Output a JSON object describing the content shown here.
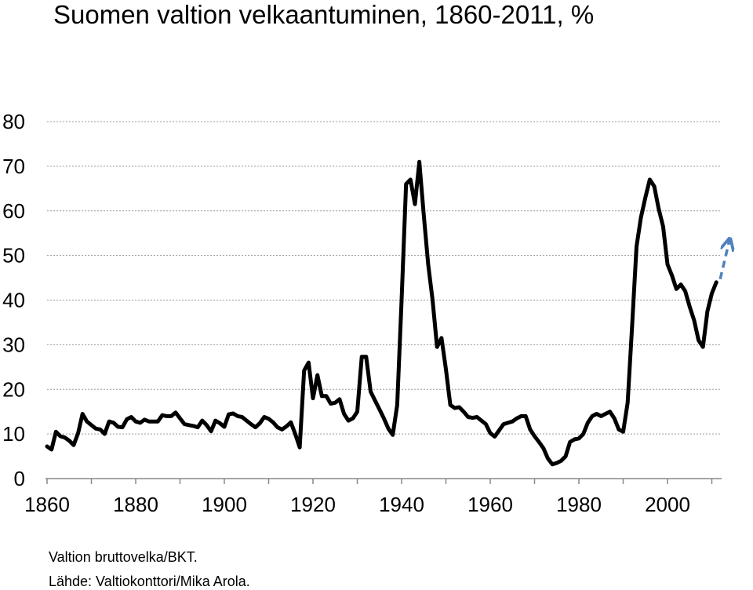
{
  "title": "Suomen valtion velkaantuminen, 1860-2011, %",
  "notes": {
    "line1": "Valtion bruttovelka/BKT.",
    "line2": "Lähde: Valtiokonttori/Mika Arola."
  },
  "chart_data": {
    "type": "line",
    "title": "Suomen valtion velkaantuminen, 1860-2011, %",
    "xlabel": "",
    "ylabel": "",
    "xlim": [
      1860,
      2013
    ],
    "ylim": [
      0,
      80
    ],
    "yticks": [
      0,
      10,
      20,
      30,
      40,
      50,
      60,
      70,
      80
    ],
    "xticks": [
      1860,
      1880,
      1900,
      1920,
      1940,
      1960,
      1980,
      2000
    ],
    "grid": true,
    "colors": {
      "line": "#000000",
      "projection": "#4f81bd",
      "grid": "#9a9a9a"
    },
    "series": [
      {
        "x": [
          1860,
          1861,
          1862,
          1863,
          1864,
          1865,
          1866,
          1867,
          1868,
          1869,
          1870,
          1871,
          1872,
          1873,
          1874,
          1875,
          1876,
          1877,
          1878,
          1879,
          1880,
          1881,
          1882,
          1883,
          1884,
          1885,
          1886,
          1887,
          1888,
          1889,
          1890,
          1891,
          1892,
          1893,
          1894,
          1895,
          1896,
          1897,
          1898,
          1899,
          1900,
          1901,
          1902,
          1903,
          1904,
          1905,
          1906,
          1907,
          1908,
          1909,
          1910,
          1911,
          1912,
          1913,
          1914,
          1915,
          1916,
          1917,
          1918,
          1919,
          1920,
          1921,
          1922,
          1923,
          1924,
          1925,
          1926,
          1927,
          1928,
          1929,
          1930,
          1931,
          1932,
          1933,
          1934,
          1935,
          1936,
          1937,
          1938,
          1939,
          1940,
          1941,
          1942,
          1943,
          1944,
          1945,
          1946,
          1947,
          1948,
          1949,
          1950,
          1951,
          1952,
          1953,
          1954,
          1955,
          1956,
          1957,
          1958,
          1959,
          1960,
          1961,
          1962,
          1963,
          1964,
          1965,
          1966,
          1967,
          1968,
          1969,
          1970,
          1971,
          1972,
          1973,
          1974,
          1975,
          1976,
          1977,
          1978,
          1979,
          1980,
          1981,
          1982,
          1983,
          1984,
          1985,
          1986,
          1987,
          1988,
          1989,
          1990,
          1991,
          1992,
          1993,
          1994,
          1995,
          1996,
          1997,
          1998,
          1999,
          2000,
          2001,
          2002,
          2003,
          2004,
          2005,
          2006,
          2007,
          2008,
          2009,
          2010,
          2011
        ],
        "values": [
          7.2,
          6.5,
          10.5,
          9.5,
          9.2,
          8.5,
          7.5,
          10.2,
          14.5,
          12.8,
          12.0,
          11.2,
          11.0,
          10.0,
          12.8,
          12.5,
          11.6,
          11.5,
          13.3,
          13.8,
          12.8,
          12.5,
          13.2,
          12.8,
          12.8,
          12.8,
          14.2,
          14.0,
          14.0,
          14.8,
          13.5,
          12.2,
          12.0,
          11.8,
          11.5,
          13.0,
          12.0,
          10.6,
          13.0,
          12.4,
          11.6,
          14.4,
          14.6,
          14.0,
          13.8,
          13.0,
          12.2,
          11.5,
          12.4,
          13.8,
          13.4,
          12.6,
          11.5,
          11.0,
          11.7,
          12.6,
          10.0,
          7.0,
          24.2,
          26.0,
          18.0,
          23.2,
          18.5,
          18.5,
          16.8,
          17.0,
          17.8,
          14.5,
          13.0,
          13.5,
          15.0,
          27.3,
          27.3,
          19.5,
          17.5,
          15.5,
          13.5,
          11.2,
          9.8,
          16.5,
          40.0,
          66.0,
          67.0,
          61.5,
          71.0,
          59.0,
          48.0,
          40.0,
          29.5,
          31.5,
          24.5,
          16.5,
          15.8,
          16.0,
          15.0,
          13.8,
          13.6,
          13.8,
          13.0,
          12.2,
          10.2,
          9.4,
          10.8,
          12.2,
          12.5,
          12.8,
          13.5,
          14.0,
          14.0,
          11.0,
          9.5,
          8.2,
          6.8,
          4.5,
          3.2,
          3.5,
          4.0,
          5.0,
          8.2,
          8.8,
          9.0,
          10.0,
          12.5,
          14.0,
          14.5,
          14.0,
          14.5,
          15.0,
          13.5,
          11.0,
          10.5,
          17.0,
          34.0,
          52.0,
          58.5,
          63.0,
          67.0,
          65.5,
          60.5,
          56.5,
          48.0,
          45.5,
          42.5,
          43.5,
          42.0,
          38.5,
          35.5,
          31.0,
          29.5,
          37.5,
          41.5,
          44.0
        ]
      }
    ],
    "projection": {
      "x": [
        2011,
        2014
      ],
      "values": [
        44,
        53.5
      ]
    }
  }
}
